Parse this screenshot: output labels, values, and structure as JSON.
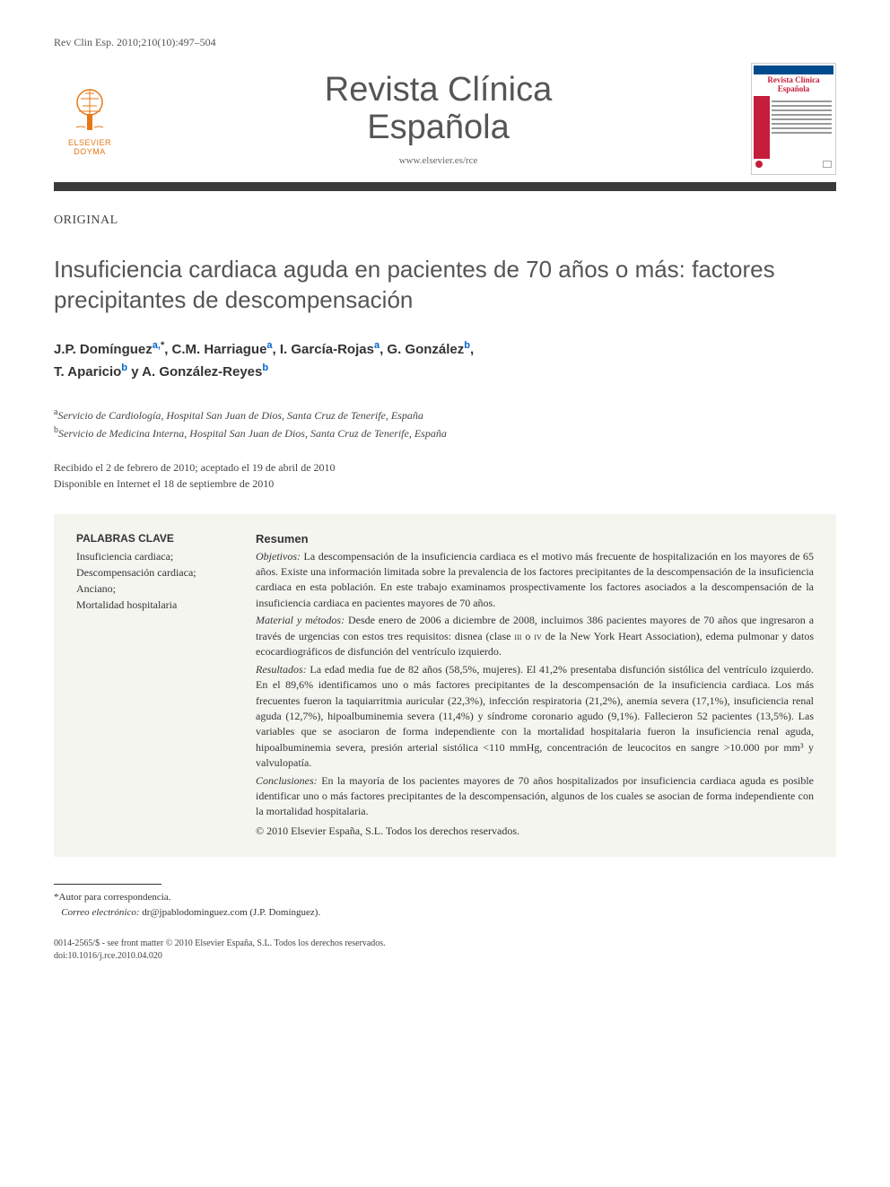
{
  "citation": "Rev Clin Esp. 2010;210(10):497–504",
  "publisher": {
    "name": "ELSEVIER DOYMA",
    "tree_color": "#e67817"
  },
  "journal": {
    "title_line1": "Revista Clínica",
    "title_line2": "Española",
    "url": "www.elsevier.es/rce"
  },
  "cover": {
    "title_line1": "Revista Clínica",
    "title_line2": "Española",
    "header_color": "#004b8d",
    "spine_color": "#c41e3a",
    "title_color": "#c41e3a"
  },
  "section_label": "ORIGINAL",
  "article_title": "Insuficiencia cardiaca aguda en pacientes de 70 años o más: factores precipitantes de descompensación",
  "authors_html": "J.P. Domínguez<sup>a,</sup><sup class='ast'>*</sup>, C.M. Harriague<sup>a</sup>, I. García-Rojas<sup>a</sup>, G. González<sup>b</sup>,<br>T. Aparicio<sup>b</sup> y A. González-Reyes<sup>b</sup>",
  "affiliations": [
    {
      "sup": "a",
      "text": "Servicio de Cardiología, Hospital San Juan de Dios, Santa Cruz de Tenerife, España"
    },
    {
      "sup": "b",
      "text": "Servicio de Medicina Interna, Hospital San Juan de Dios, Santa Cruz de Tenerife, España"
    }
  ],
  "dates": {
    "received_accepted": "Recibido el 2 de febrero de 2010; aceptado el 19 de abril de 2010",
    "online": "Disponible en Internet el 18 de septiembre de 2010"
  },
  "keywords": {
    "heading": "PALABRAS CLAVE",
    "items": "Insuficiencia cardiaca;<br>Descompensación cardiaca;<br>Anciano;<br>Mortalidad hospitalaria"
  },
  "abstract": {
    "heading": "Resumen",
    "sections": {
      "objetivos": {
        "label": "Objetivos:",
        "text": "La descompensación de la insuficiencia cardiaca es el motivo más frecuente de hospitalización en los mayores de 65 años. Existe una información limitada sobre la prevalencia de los factores precipitantes de la descompensación de la insuficiencia cardiaca en esta población. En este trabajo examinamos prospectivamente los factores asociados a la descompensación de la insuficiencia cardiaca en pacientes mayores de 70 años."
      },
      "metodos": {
        "label": "Material y métodos:",
        "text": "Desde enero de 2006 a diciembre de 2008, incluimos 386 pacientes mayores de 70 años que ingresaron a través de urgencias con estos tres requisitos: disnea (clase III o IV de la New York Heart Association), edema pulmonar y datos ecocardiográficos de disfunción del ventrículo izquierdo."
      },
      "resultados": {
        "label": "Resultados:",
        "text": "La edad media fue de 82 años (58,5%, mujeres). El 41,2% presentaba disfunción sistólica del ventrículo izquierdo. En el 89,6% identificamos uno o más factores precipitantes de la descompensación de la insuficiencia cardiaca. Los más frecuentes fueron la taquiarritmia auricular (22,3%), infección respiratoria (21,2%), anemia severa (17,1%), insuficiencia renal aguda (12,7%), hipoalbuminemia severa (11,4%) y síndrome coronario agudo (9,1%). Fallecieron 52 pacientes (13,5%). Las variables que se asociaron de forma independiente con la mortalidad hospitalaria fueron la insuficiencia renal aguda, hipoalbuminemia severa, presión arterial sistólica <110 mmHg, concentración de leucocitos en sangre >10.000 por mm³ y valvulopatía."
      },
      "conclusiones": {
        "label": "Conclusiones:",
        "text": "En la mayoría de los pacientes mayores de 70 años hospitalizados por insuficiencia cardiaca aguda es posible identificar uno o más factores precipitantes de la descompensación, algunos de los cuales se asocian de forma independiente con la mortalidad hospitalaria."
      }
    },
    "copyright": "© 2010 Elsevier España, S.L. Todos los derechos reservados."
  },
  "footnotes": {
    "corresponding": "*Autor para correspondencia.",
    "email_label": "Correo electrónico:",
    "email": "dr@jpablodominguez.com",
    "email_author": "(J.P. Domínguez)."
  },
  "footer": {
    "issn": "0014-2565/$ - see front matter © 2010 Elsevier España, S.L. Todos los derechos reservados.",
    "doi": "doi:10.1016/j.rce.2010.04.020"
  },
  "colors": {
    "divider": "#3a3a3a",
    "link": "#0066cc",
    "abstract_bg": "#f5f5f0",
    "text": "#333333"
  }
}
